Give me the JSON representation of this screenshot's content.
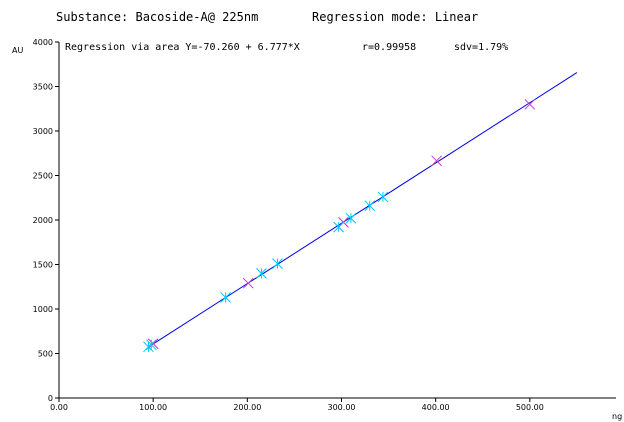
{
  "header": {
    "substance_text": "Substance: Bacoside-A@ 225nm",
    "mode_text": "Regression mode:  Linear"
  },
  "chart_data": {
    "type": "scatter",
    "regression_text": "Regression via area Y=-70.260 + 6.777*X",
    "r_text": "r=0.99958",
    "sdv_text": "sdv=1.79%",
    "ylabel": "AU",
    "xlabel": "ng",
    "xlim": [
      0,
      600
    ],
    "ylim": [
      0,
      4000
    ],
    "x_ticks": [
      "0.00",
      "100.00",
      "200.00",
      "300.00",
      "400.00",
      "500.00"
    ],
    "y_ticks": [
      "0",
      "500",
      "1000",
      "1500",
      "2000",
      "2500",
      "3000",
      "3500",
      "4000"
    ],
    "regression": {
      "intercept": -70.26,
      "slope": 6.777,
      "x_range": [
        99,
        550
      ]
    },
    "colors": {
      "line": "#0000ee",
      "standards": "#cc33cc",
      "samples": "#00c8ff",
      "axes": "#000000"
    },
    "series": [
      {
        "marker": "x",
        "color": "#cc33cc",
        "points": [
          [
            100,
            610
          ],
          [
            201,
            1290
          ],
          [
            302,
            1975
          ],
          [
            401,
            2665
          ],
          [
            500,
            3300
          ]
        ]
      },
      {
        "marker": "star",
        "color": "#00c8ff",
        "points": [
          [
            95,
            575
          ],
          [
            98,
            600
          ],
          [
            177,
            1130
          ],
          [
            215,
            1400
          ],
          [
            232,
            1510
          ],
          [
            297,
            1920
          ],
          [
            310,
            2020
          ],
          [
            330,
            2160
          ],
          [
            344,
            2260
          ]
        ]
      }
    ]
  }
}
